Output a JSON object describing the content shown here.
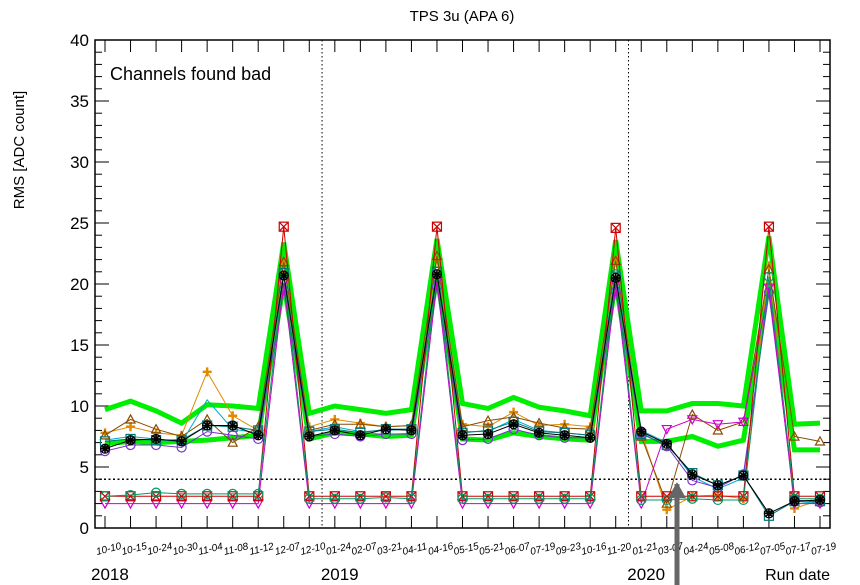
{
  "chart_data": {
    "type": "line",
    "title": "TPS 3u (APA 6)",
    "ylabel": "RMS [ADC count]",
    "xlabel": "Run date",
    "annotation": "Channels found bad",
    "ylim": [
      0,
      40
    ],
    "yticks": [
      0,
      5,
      10,
      15,
      20,
      25,
      30,
      35,
      40
    ],
    "threshold": 4,
    "x_tick_labels": [
      "10-10",
      "10-15",
      "10-24",
      "10-30",
      "11-04",
      "11-08",
      "11-12",
      "12-07",
      "12-10",
      "01-24",
      "02-07",
      "03-21",
      "04-11",
      "04-16",
      "05-15",
      "05-21",
      "06-07",
      "07-19",
      "09-23",
      "10-16",
      "11-20",
      "01-21",
      "03-07",
      "04-24",
      "05-08",
      "06-12",
      "07-05",
      "07-17",
      "07-19"
    ],
    "year_labels": [
      {
        "label": "2018",
        "index": 0
      },
      {
        "label": "2019",
        "index": 9
      },
      {
        "label": "2020",
        "index": 21
      }
    ],
    "year_dividers": [
      8.5,
      20.5
    ],
    "series": [
      {
        "color": "#00ee00",
        "marker": "none",
        "width": 5,
        "values": [
          9.7,
          10.4,
          9.6,
          8.6,
          10.1,
          10.0,
          9.8,
          23.4,
          9.4,
          10.0,
          9.7,
          9.4,
          9.7,
          23.7,
          10.2,
          9.8,
          10.7,
          9.9,
          9.6,
          9.2,
          23.6,
          9.6,
          9.6,
          10.2,
          10.2,
          10.0,
          23.9,
          8.5,
          8.6
        ]
      },
      {
        "color": "#00ee00",
        "marker": "none",
        "width": 5,
        "values": [
          6.9,
          7.1,
          7.0,
          7.1,
          7.2,
          7.4,
          7.6,
          20.0,
          7.3,
          7.8,
          7.7,
          7.5,
          7.6,
          20.6,
          7.3,
          7.2,
          7.8,
          7.5,
          7.3,
          7.2,
          20.1,
          7.1,
          7.1,
          7.5,
          6.7,
          7.2,
          20.1,
          6.4,
          6.4
        ]
      },
      {
        "color": "#e08a00",
        "marker": "cross",
        "values": [
          7.8,
          8.3,
          7.8,
          7.6,
          12.8,
          9.2,
          8.0,
          21.7,
          8.3,
          8.9,
          8.6,
          8.3,
          8.4,
          22.0,
          8.5,
          8.3,
          9.5,
          8.4,
          8.5,
          8.3,
          22.0,
          7.9,
          1.5,
          2.6,
          2.7,
          2.4,
          21.5,
          1.6,
          2.3
        ]
      },
      {
        "color": "#8a4a00",
        "marker": "triangle",
        "values": [
          7.6,
          8.9,
          8.1,
          7.5,
          8.9,
          7.0,
          8.3,
          21.8,
          8.0,
          8.5,
          8.5,
          8.3,
          8.4,
          22.3,
          8.3,
          8.8,
          9.1,
          8.6,
          8.2,
          8.1,
          21.9,
          7.5,
          2.0,
          9.3,
          8.0,
          8.7,
          21.2,
          7.5,
          7.1
        ]
      },
      {
        "color": "#00aacc",
        "marker": "none",
        "values": [
          7.2,
          7.5,
          7.3,
          7.0,
          10.5,
          8.1,
          7.8,
          20.8,
          7.9,
          8.3,
          7.9,
          8.0,
          8.1,
          21.0,
          7.9,
          7.9,
          8.9,
          8.0,
          7.8,
          7.6,
          20.9,
          8.0,
          7.0,
          4.2,
          3.2,
          4.1,
          19.8,
          2.2,
          2.0
        ]
      },
      {
        "color": "#7733cc",
        "marker": "circle",
        "values": [
          6.3,
          6.8,
          6.8,
          6.6,
          7.9,
          7.6,
          7.3,
          19.5,
          7.5,
          7.7,
          7.5,
          7.7,
          7.7,
          19.8,
          7.2,
          7.3,
          8.1,
          7.6,
          7.4,
          7.4,
          19.4,
          7.8,
          6.7,
          3.9,
          3.3,
          4.4,
          19.3,
          2.3,
          2.1
        ]
      },
      {
        "color": "#cc00cc",
        "marker": "triangle-down",
        "values": [
          2.0,
          2.0,
          2.0,
          2.0,
          2.0,
          2.0,
          2.0,
          20.1,
          2.0,
          2.0,
          2.0,
          2.0,
          2.0,
          20.2,
          2.0,
          2.0,
          2.0,
          2.0,
          2.0,
          2.0,
          20.0,
          2.0,
          8.1,
          8.9,
          8.5,
          8.7,
          19.7,
          2.0,
          2.0
        ]
      },
      {
        "color": "#cc0000",
        "marker": "square-x",
        "values": [
          2.6,
          2.6,
          2.6,
          2.6,
          2.6,
          2.6,
          2.6,
          24.7,
          2.6,
          2.6,
          2.6,
          2.6,
          2.6,
          24.7,
          2.6,
          2.6,
          2.6,
          2.6,
          2.6,
          2.6,
          24.6,
          2.6,
          2.6,
          2.6,
          2.6,
          2.6,
          24.7,
          2.6,
          2.6
        ]
      },
      {
        "color": "#009966",
        "marker": "circle",
        "values": [
          2.6,
          2.7,
          2.9,
          2.8,
          2.8,
          2.8,
          2.8,
          20.9,
          2.4,
          2.4,
          2.4,
          2.5,
          2.4,
          21.0,
          2.4,
          2.4,
          2.4,
          2.4,
          2.4,
          2.4,
          20.8,
          2.3,
          2.3,
          2.4,
          2.3,
          2.3,
          20.6,
          2.4,
          2.4
        ]
      },
      {
        "color": "#007777",
        "marker": "square",
        "values": [
          7.1,
          7.3,
          7.2,
          7.2,
          8.4,
          8.3,
          8.0,
          20.9,
          7.9,
          8.1,
          7.8,
          8.1,
          8.1,
          21.0,
          7.8,
          8.0,
          8.7,
          7.9,
          7.8,
          7.6,
          20.6,
          7.7,
          6.8,
          4.5,
          3.5,
          4.3,
          1.0,
          2.2,
          2.2
        ]
      },
      {
        "color": "#000000",
        "marker": "star",
        "values": [
          6.5,
          7.2,
          7.3,
          7.1,
          8.4,
          8.4,
          7.6,
          20.7,
          7.5,
          8.0,
          7.6,
          8.1,
          8.0,
          20.8,
          7.6,
          7.7,
          8.5,
          7.8,
          7.6,
          7.4,
          20.5,
          7.9,
          6.9,
          4.4,
          3.5,
          4.3,
          1.2,
          2.2,
          2.3
        ]
      }
    ]
  }
}
